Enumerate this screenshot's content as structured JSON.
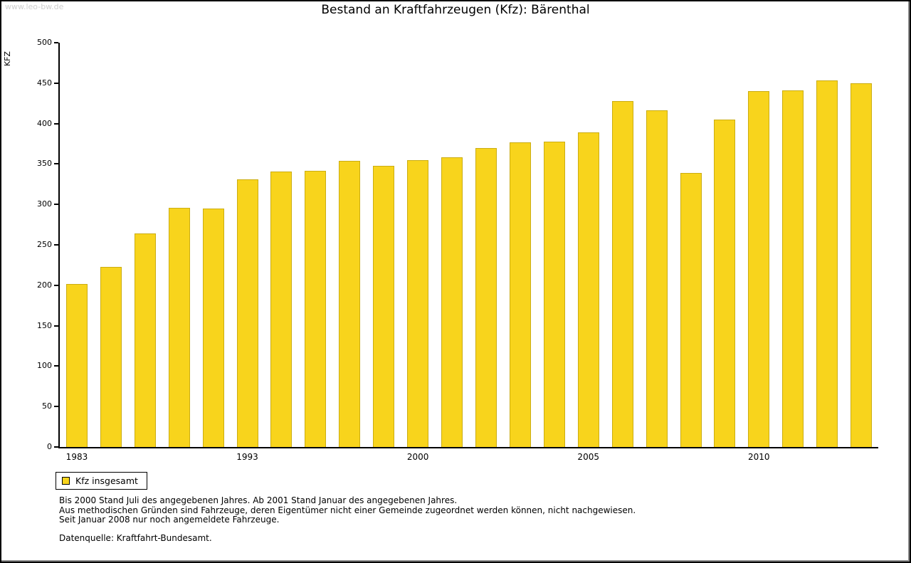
{
  "watermark": "www.leo-bw.de",
  "title": "Bestand an Kraftfahrzeugen (Kfz): Bärenthal",
  "legend": {
    "items": [
      {
        "label": "Kfz insgesamt",
        "color": "#F8D41C"
      }
    ]
  },
  "footnotes": [
    "Bis 2000 Stand Juli des angegebenen Jahres. Ab 2001 Stand Januar des angegebenen Jahres.",
    "Aus methodischen Gründen sind Fahrzeuge, deren Eigentümer nicht einer Gemeinde zugeordnet werden können, nicht nachgewiesen.",
    "Seit Januar 2008 nur noch angemeldete Fahrzeuge."
  ],
  "source": "Datenquelle: Kraftfahrt-Bundesamt.",
  "chart_data": {
    "type": "bar",
    "title": "Bestand an Kraftfahrzeugen (Kfz): Bärenthal",
    "xlabel": "",
    "ylabel": "KFZ",
    "ylim": [
      0,
      500
    ],
    "yticks": [
      0,
      50,
      100,
      150,
      200,
      250,
      300,
      350,
      400,
      450,
      500
    ],
    "grid": false,
    "legend_position": "bottom-left",
    "bar_color": "#F8D41C",
    "series_name": "Kfz insgesamt",
    "categories": [
      1983,
      1985,
      1987,
      1989,
      1991,
      1993,
      1995,
      1997,
      1998,
      1999,
      2000,
      2001,
      2002,
      2003,
      2004,
      2005,
      2006,
      2007,
      2008,
      2009,
      2010,
      2011,
      2012,
      2013
    ],
    "values": [
      202,
      223,
      264,
      296,
      295,
      331,
      341,
      342,
      354,
      348,
      355,
      358,
      370,
      377,
      378,
      389,
      428,
      416,
      339,
      405,
      440,
      441,
      453,
      450
    ],
    "x_axis_labels": [
      "1983",
      "1993",
      "2000",
      "2005",
      "2010"
    ],
    "x_axis_label_indices": [
      0,
      5,
      10,
      15,
      20
    ]
  }
}
